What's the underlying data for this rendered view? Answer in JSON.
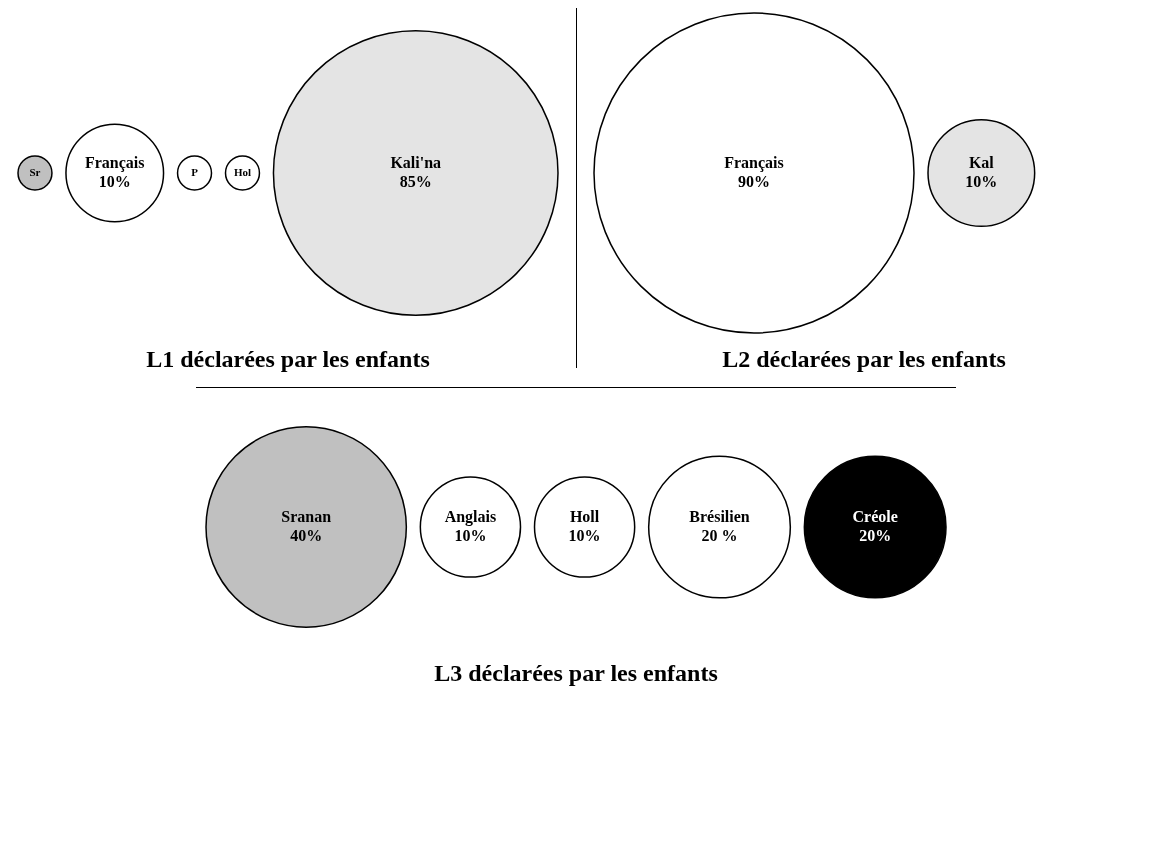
{
  "chart_data": [
    {
      "type": "other",
      "title": "L1 déclarées par les enfants",
      "categories": [
        "Sr",
        "Français",
        "P",
        "Hol",
        "Kali'na"
      ],
      "values": [
        null,
        10,
        null,
        null,
        85
      ],
      "value_labels": [
        null,
        "10%",
        null,
        null,
        "85%"
      ],
      "colors": [
        "#c0c0c0",
        "#ffffff",
        "#ffffff",
        "#ffffff",
        "#e4e4e4"
      ]
    },
    {
      "type": "other",
      "title": "L2 déclarées par les enfants",
      "categories": [
        "Français",
        "Kal"
      ],
      "values": [
        90,
        10
      ],
      "value_labels": [
        "90%",
        "10%"
      ],
      "colors": [
        "#ffffff",
        "#e4e4e4"
      ]
    },
    {
      "type": "other",
      "title": "L3 déclarées par les enfants",
      "categories": [
        "Sranan",
        "Anglais",
        "Holl",
        "Brésilien",
        "Créole"
      ],
      "values": [
        40,
        10,
        10,
        20,
        20
      ],
      "value_labels": [
        "40%",
        "10%",
        "10%",
        "20 %",
        "20%"
      ],
      "colors": [
        "#c0c0c0",
        "#ffffff",
        "#ffffff",
        "#ffffff",
        "#000000"
      ]
    }
  ]
}
